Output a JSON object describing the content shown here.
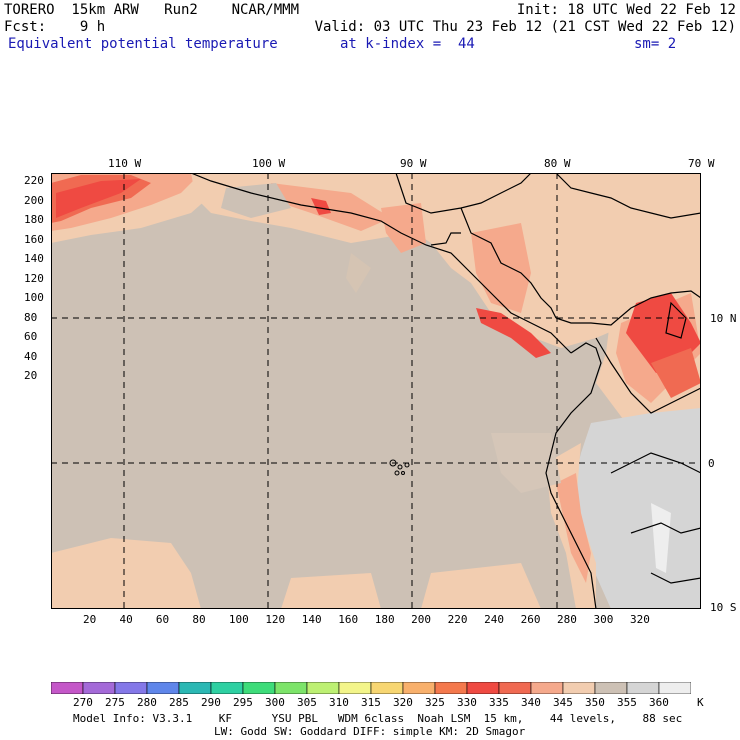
{
  "header": {
    "line1_left": "TORERO  15km ARW   Run2    NCAR/MMM",
    "line1_right": "Init: 18 UTC Wed 22 Feb 12",
    "line2_left": "Fcst:    9 h",
    "line2_right": "Valid: 03 UTC Thu 23 Feb 12 (21 CST Wed 22 Feb 12)",
    "line3_field": "Equivalent potential temperature",
    "line3_level": "at k-index =  44",
    "line3_smooth": "sm= 2"
  },
  "map": {
    "top_lon_labels": [
      "110 W",
      "100 W",
      "90 W",
      "80 W",
      "70 W"
    ],
    "right_lat_labels": [
      "10 N",
      "0",
      "10 S"
    ],
    "left_y_ticks": [
      "220",
      "200",
      "180",
      "160",
      "140",
      "120",
      "100",
      "80",
      "60",
      "40",
      "20"
    ],
    "bottom_x_ticks": [
      "20",
      "40",
      "60",
      "80",
      "100",
      "120",
      "140",
      "160",
      "180",
      "200",
      "220",
      "240",
      "260",
      "280",
      "300",
      "320"
    ],
    "grid_lines": "dashed",
    "background_color": "#cdc1b5"
  },
  "colorbar": {
    "labels": [
      "270",
      "275",
      "280",
      "285",
      "290",
      "295",
      "300",
      "305",
      "310",
      "315",
      "320",
      "325",
      "330",
      "335",
      "340",
      "345",
      "350",
      "355",
      "360"
    ],
    "unit": "K",
    "colors": [
      "#c457c8",
      "#a46ad8",
      "#8478e8",
      "#5f86ea",
      "#2bb8b4",
      "#2ed0a2",
      "#3edc7a",
      "#7de46a",
      "#bdf073",
      "#f3f58a",
      "#f7d672",
      "#f8b06c",
      "#f4794d",
      "#ef4a42",
      "#f06a52",
      "#f5a98c",
      "#f2cdb0",
      "#cdc1b5",
      "#d5d5d5",
      "#eeeeee"
    ]
  },
  "footer": {
    "line1": "Model Info: V3.3.1    KF      YSU PBL   WDM 6class  Noah LSM  15 km,    44 levels,    88 sec",
    "line2": "LW: Godd SW: Goddard DIFF: simple KM: 2D Smagor"
  }
}
